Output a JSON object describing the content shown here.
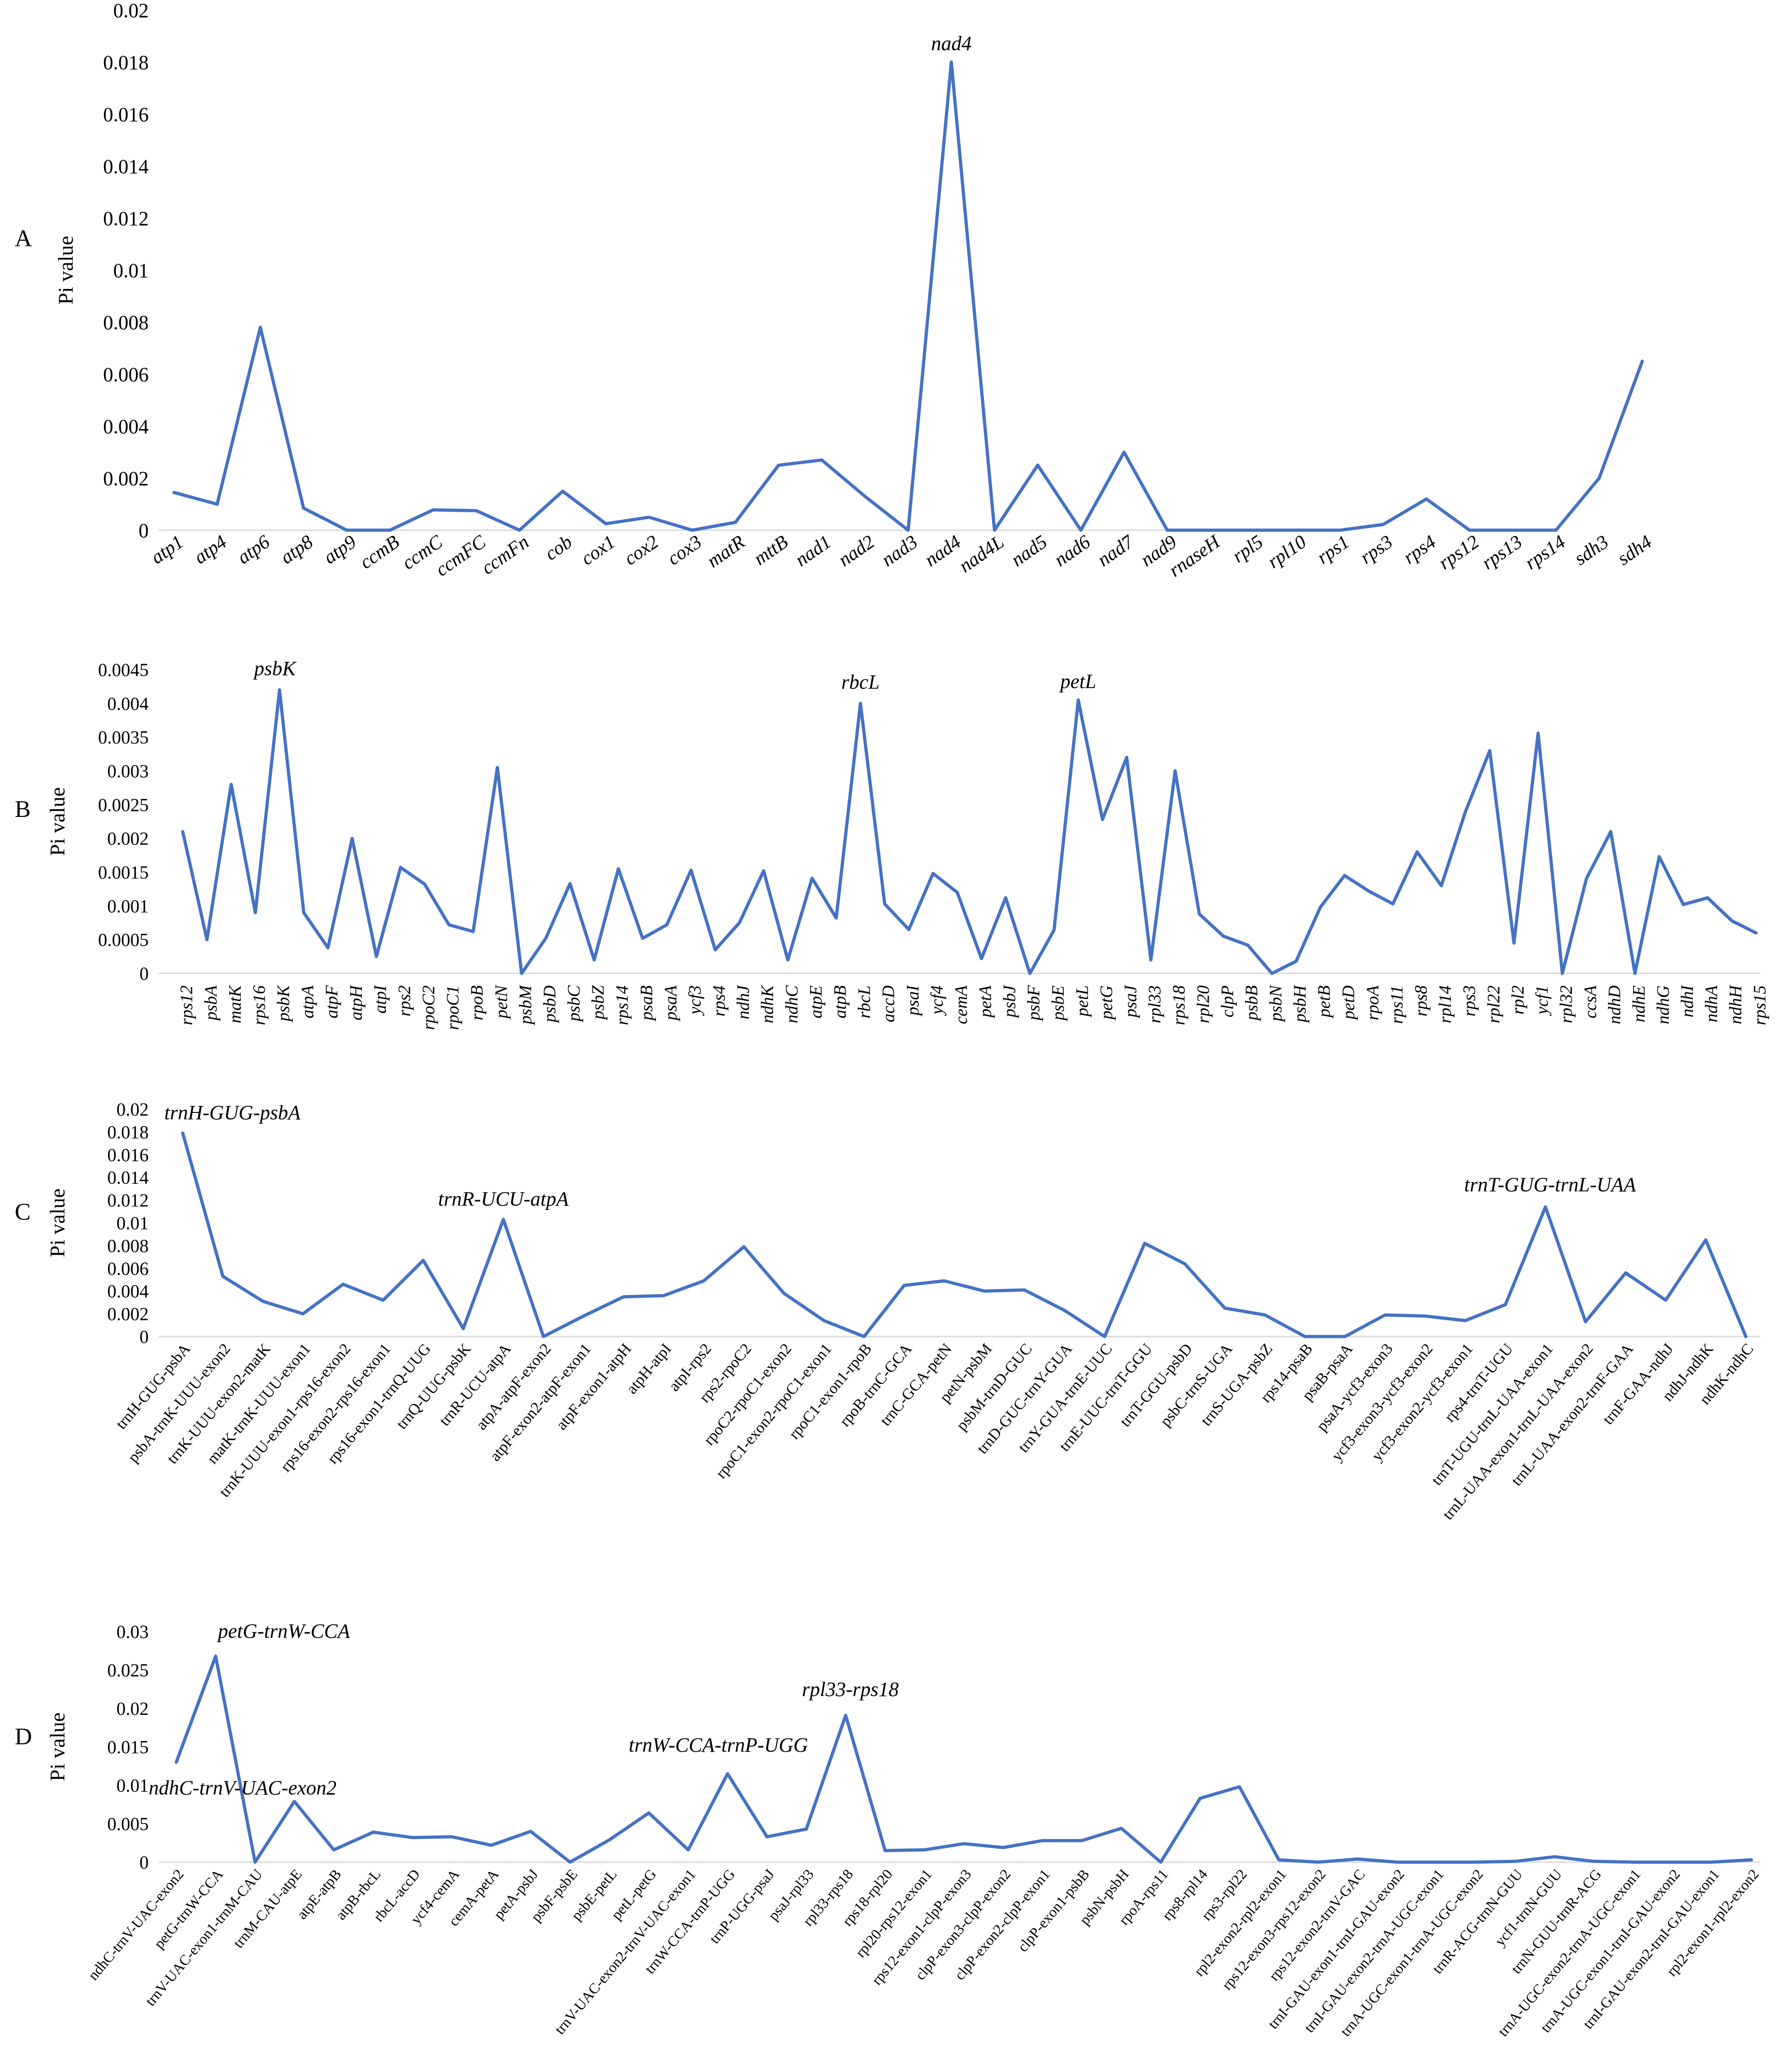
{
  "chart_data": [
    {
      "type": "line",
      "panel_label": "A",
      "ylabel": "Pi value",
      "ylim": [
        0,
        0.02
      ],
      "yticks": [
        "0",
        "0.002",
        "0.004",
        "0.006",
        "0.008",
        "0.01",
        "0.012",
        "0.014",
        "0.016",
        "0.018",
        "0.02"
      ],
      "line_color": "#4472c4",
      "grid": false,
      "categories": [
        "atp1",
        "atp4",
        "atp6",
        "atp8",
        "atp9",
        "ccmB",
        "ccmC",
        "ccmFC",
        "ccmFn",
        "cob",
        "cox1",
        "cox2",
        "cox3",
        "matR",
        "mttB",
        "nad1",
        "nad2",
        "nad3",
        "nad4",
        "nad4L",
        "nad5",
        "nad6",
        "nad7",
        "nad9",
        "rnaseH",
        "rpl5",
        "rpl10",
        "rps1",
        "rps3",
        "rps4",
        "rps12",
        "rps13",
        "rps14",
        "sdh3",
        "sdh4"
      ],
      "values": [
        0.00145,
        0.001,
        0.0078,
        0.00085,
        0,
        0,
        0.00078,
        0.00075,
        0,
        0.0015,
        0.00025,
        0.0005,
        0,
        0.0003,
        0.0025,
        0.0027,
        0.0013,
        0,
        0.018,
        0,
        0.0025,
        0,
        0.003,
        0,
        0,
        0,
        0,
        0,
        0.00022,
        0.0012,
        0,
        0,
        0,
        0.002,
        0.0065
      ],
      "annotations": [
        {
          "text": "nad4",
          "category": "nad4"
        }
      ]
    },
    {
      "type": "line",
      "panel_label": "B",
      "ylabel": "Pi value",
      "ylim": [
        0,
        0.0045
      ],
      "yticks": [
        "0",
        "0.0005",
        "0.001",
        "0.0015",
        "0.002",
        "0.0025",
        "0.003",
        "0.0035",
        "0.004",
        "0.0045"
      ],
      "line_color": "#4472c4",
      "grid": false,
      "categories": [
        "rps12",
        "psbA",
        "matK",
        "rps16",
        "psbK",
        "atpA",
        "atpF",
        "atpH",
        "atpI",
        "rps2",
        "rpoC2",
        "rpoC1",
        "rpoB",
        "petN",
        "psbM",
        "psbD",
        "psbC",
        "psbZ",
        "rps14",
        "psaB",
        "psaA",
        "ycf3",
        "rps4",
        "ndhJ",
        "ndhK",
        "ndhC",
        "atpE",
        "atpB",
        "rbcL",
        "accD",
        "psaI",
        "ycf4",
        "cemA",
        "petA",
        "psbJ",
        "psbF",
        "psbE",
        "petL",
        "petG",
        "psaJ",
        "rpl33",
        "rps18",
        "rpl20",
        "clpP",
        "psbB",
        "psbN",
        "psbH",
        "petB",
        "petD",
        "rpoA",
        "rps11",
        "rps8",
        "rpl14",
        "rps3",
        "rpl22",
        "rpl2",
        "ycf1",
        "rpl32",
        "ccsA",
        "ndhD",
        "ndhE",
        "ndhG",
        "ndhI",
        "ndhA",
        "ndhH",
        "rps15"
      ],
      "values": [
        0.0021,
        0.0005,
        0.0028,
        0.0009,
        0.0042,
        0.0009,
        0.00038,
        0.002,
        0.00025,
        0.00157,
        0.00132,
        0.00072,
        0.00062,
        0.00305,
        0,
        0.00052,
        0.00133,
        0.0002,
        0.00155,
        0.00052,
        0.00072,
        0.00153,
        0.00035,
        0.00075,
        0.00152,
        0.0002,
        0.00141,
        0.00082,
        0.004,
        0.00103,
        0.00065,
        0.00148,
        0.0012,
        0.00022,
        0.00112,
        0,
        0.00064,
        0.00405,
        0.00228,
        0.0032,
        0.0002,
        0.003,
        0.00088,
        0.00055,
        0.00042,
        0,
        0.00018,
        0.00098,
        0.00145,
        0.00122,
        0.00103,
        0.0018,
        0.0013,
        0.0024,
        0.0033,
        0.00045,
        0.00356,
        0,
        0.00141,
        0.0021,
        0,
        0.00173,
        0.00102,
        0.00112,
        0.00078,
        0.0006
      ],
      "annotations": [
        {
          "text": "psbK",
          "category": "psbK"
        },
        {
          "text": "rbcL",
          "category": "rbcL"
        },
        {
          "text": "petL",
          "category": "petL"
        }
      ]
    },
    {
      "type": "line",
      "panel_label": "C",
      "ylabel": "Pi value",
      "ylim": [
        0,
        0.02
      ],
      "yticks": [
        "0",
        "0.002",
        "0.004",
        "0.006",
        "0.008",
        "0.01",
        "0.012",
        "0.014",
        "0.016",
        "0.018",
        "0.02"
      ],
      "line_color": "#4472c4",
      "grid": false,
      "categories": [
        "trnH-GUG-psbA",
        "psbA-trnK-UUU-exon2",
        "trnK-UUU-exon2-matK",
        "matK-trnK-UUU-exon1",
        "trnK-UUU-exon1-rps16-exon2",
        "rps16-exon2-rps16-exon1",
        "rps16-exon1-trnQ-UUG",
        "trnQ-UUG-psbK",
        "trnR-UCU-atpA",
        "atpA-atpF-exon2",
        "atpF-exon2-atpF-exon1",
        "atpF-exon1-atpH",
        "atpH-atpI",
        "atpI-rps2",
        "rps2-rpoC2",
        "rpoC2-rpoC1-exon2",
        "rpoC1-exon2-rpoC1-exon1",
        "rpoC1-exon1-rpoB",
        "rpoB-trnC-GCA",
        "trnC-GCA-petN",
        "petN-psbM",
        "psbM-trnD-GUC",
        "trnD-GUC-trnY-GUA",
        "trnY-GUA-trnE-UUC",
        "trnE-UUC-trnT-GGU",
        "trnT-GGU-psbD",
        "psbC-trnS-UGA",
        "trnS-UGA-psbZ",
        "rps14-psaB",
        "psaB-psaA",
        "psaA-ycf3-exon3",
        "ycf3-exon3-ycf3-exon2",
        "ycf3-exon2-ycf3-exon1",
        "rps4-trnT-UGU",
        "trnT-UGU-trnL-UAA-exon1",
        "trnL-UAA-exon1-trnL-UAA-exon2",
        "trnL-UAA-exon2-trnF-GAA",
        "trnF-GAA-ndhJ",
        "ndhJ-ndhK",
        "ndhK-ndhC"
      ],
      "values": [
        0.0179,
        0.0053,
        0.0031,
        0.002,
        0.0046,
        0.0032,
        0.0067,
        0.0007,
        0.0103,
        0,
        0.0018,
        0.0035,
        0.0036,
        0.0049,
        0.0079,
        0.0038,
        0.0014,
        0,
        0.0045,
        0.0049,
        0.004,
        0.0041,
        0.0023,
        0,
        0.0082,
        0.0064,
        0.0025,
        0.0019,
        0,
        0,
        0.0019,
        0.0018,
        0.0014,
        0.0028,
        0.0114,
        0.0013,
        0.0056,
        0.0032,
        0.0085,
        0
      ],
      "annotations": [
        {
          "text": "trnH-GUG-psbA",
          "category": "trnH-GUG-psbA"
        },
        {
          "text": "trnR-UCU-atpA",
          "category": "trnR-UCU-atpA"
        },
        {
          "text": "trnT-GUG-trnL-UAA",
          "category": "trnT-UGU-trnL-UAA-exon1"
        }
      ]
    },
    {
      "type": "line",
      "panel_label": "D",
      "ylabel": "Pi value",
      "ylim": [
        0,
        0.03
      ],
      "yticks": [
        "0",
        "0.005",
        "0.01",
        "0.015",
        "0.02",
        "0.025",
        "0.03"
      ],
      "line_color": "#4472c4",
      "grid": false,
      "categories": [
        "ndhC-trnV-UAC-exon2",
        "petG-trnW-CCA",
        "trnV-UAC-exon1-trnM-CAU",
        "trnM-CAU-atpE",
        "atpE-atpB",
        "atpB-rbcL",
        "rbcL-accD",
        "ycf4-cemA",
        "cemA-petA",
        "petA-psbJ",
        "psbF-psbE",
        "psbE-petL",
        "petL-petG",
        "trnV-UAC-exon2-trnV-UAC-exon1",
        "trnW-CCA-trnP-UGG",
        "trnP-UGG-psaJ",
        "psaJ-rpl33",
        "rpl33-rps18",
        "rps18-rpl20",
        "rpl20-rps12-exon1",
        "rps12-exon1-clpP-exon3",
        "clpP-exon3-clpP-exon2",
        "clpP-exon2-clpP-exon1",
        "clpP-exon1-psbB",
        "psbN-psbH",
        "rpoA-rps11",
        "rps8-rpl14",
        "rps3-rpl22",
        "rpl2-exon2-rpl2-exon1",
        "rps12-exon3-rps12-exon2",
        "rps12-exon2-trnV-GAC",
        "trnI-GAU-exon1-trnI-GAU-exon2",
        "trnI-GAU-exon2-trnA-UGC-exon1",
        "trnA-UGC-exon1-trnA-UGC-exon2",
        "trnR-ACG-trnN-GUU",
        "ycf1-trnN-GUU",
        "trnN-GUU-trnR-ACG",
        "trnA-UGC-exon2-trnA-UGC-exon1",
        "trnA-UGC-exon1-trnI-GAU-exon2",
        "trnI-GAU-exon2-trnI-GAU-exon1",
        "rpl2-exon1-rpl2-exon2"
      ],
      "values": [
        0.013,
        0.0268,
        0,
        0.0079,
        0.0016,
        0.0039,
        0.0032,
        0.0033,
        0.0022,
        0.004,
        0,
        0.0029,
        0.0064,
        0.0016,
        0.0115,
        0.0033,
        0.0043,
        0.0191,
        0.0015,
        0.0016,
        0.0024,
        0.0019,
        0.0028,
        0.0028,
        0.0044,
        0,
        0.0083,
        0.0098,
        0.0003,
        0,
        0.0004,
        0,
        0,
        0,
        0.0001,
        0.0007,
        0.0001,
        0,
        0,
        0,
        0.0003
      ],
      "annotations": [
        {
          "text": "petG-trnW-CCA",
          "category": "petG-trnW-CCA"
        },
        {
          "text": "ndhC-trnV-UAC-exon2",
          "category": "ndhC-trnV-UAC-exon2"
        },
        {
          "text": "trnW-CCA-trnP-UGG",
          "category": "trnW-CCA-trnP-UGG"
        },
        {
          "text": "rpl33-rps18",
          "category": "rpl33-rps18"
        }
      ]
    }
  ]
}
